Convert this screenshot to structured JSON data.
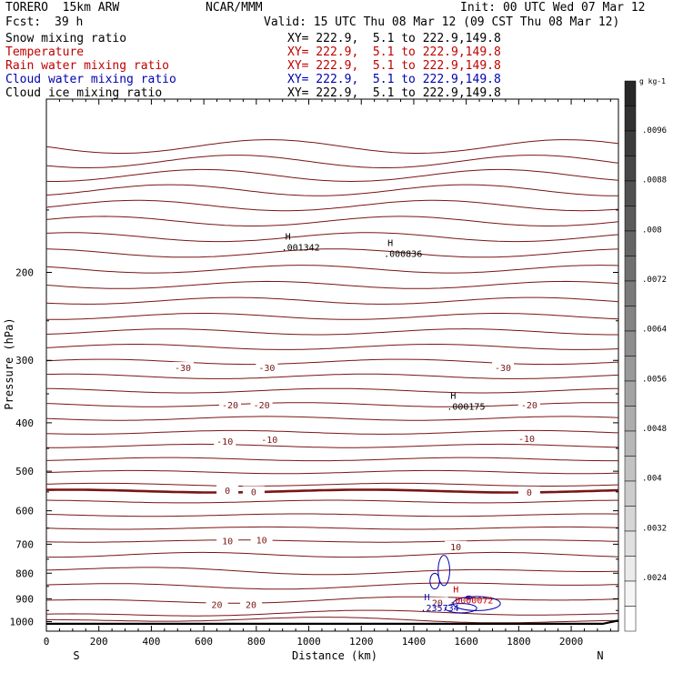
{
  "header": {
    "model": "TORERO  15km ARW",
    "org": "NCAR/MMM",
    "init": "Init: 00 UTC Wed 07 Mar 12",
    "fcst_label": "Fcst:",
    "fcst_value": "39 h",
    "valid": "Valid: 15 UTC Thu 08 Mar 12 (09 CST Thu 08 Mar 12)"
  },
  "fields": [
    {
      "name": "Snow mixing ratio",
      "xy": "XY= 222.9,  5.1 to 222.9,149.8",
      "color": "#000000"
    },
    {
      "name": "Temperature",
      "xy": "XY= 222.9,  5.1 to 222.9,149.8",
      "color": "#c00000"
    },
    {
      "name": "Rain water mixing ratio",
      "xy": "XY= 222.9,  5.1 to 222.9,149.8",
      "color": "#c00000"
    },
    {
      "name": "Cloud water mixing ratio",
      "xy": "XY= 222.9,  5.1 to 222.9,149.8",
      "color": "#0000b0"
    },
    {
      "name": "Cloud ice mixing ratio",
      "xy": "XY= 222.9,  5.1 to 222.9,149.8",
      "color": "#000000"
    }
  ],
  "chart_data": {
    "type": "contour-cross-section",
    "xlabel": "Distance (km)",
    "ylabel": "Pressure (hPa)",
    "xlim": [
      0,
      2180
    ],
    "ylim": [
      1045,
      90
    ],
    "y_scale": "log-pressure",
    "x_ticks": [
      0,
      200,
      400,
      600,
      800,
      1000,
      1200,
      1400,
      1600,
      1800,
      2000
    ],
    "y_ticks": [
      200,
      300,
      400,
      500,
      600,
      700,
      800,
      900,
      1000
    ],
    "x_end_labels": {
      "left": "S",
      "right": "N"
    },
    "temperature_contour_labels": [
      {
        "text": "-30",
        "x": 520,
        "p": 310
      },
      {
        "text": "-30",
        "x": 840,
        "p": 310
      },
      {
        "text": "-30",
        "x": 1740,
        "p": 310
      },
      {
        "text": "-20",
        "x": 700,
        "p": 368
      },
      {
        "text": "-20",
        "x": 820,
        "p": 368
      },
      {
        "text": "-20",
        "x": 1840,
        "p": 368
      },
      {
        "text": "-10",
        "x": 680,
        "p": 435
      },
      {
        "text": "-10",
        "x": 850,
        "p": 432
      },
      {
        "text": "-10",
        "x": 1830,
        "p": 430
      },
      {
        "text": "0",
        "x": 690,
        "p": 546
      },
      {
        "text": "0",
        "x": 790,
        "p": 549
      },
      {
        "text": "0",
        "x": 1840,
        "p": 550
      },
      {
        "text": "10",
        "x": 690,
        "p": 689
      },
      {
        "text": "10",
        "x": 820,
        "p": 686
      },
      {
        "text": "10",
        "x": 1560,
        "p": 707
      },
      {
        "text": "20",
        "x": 650,
        "p": 924
      },
      {
        "text": "20",
        "x": 780,
        "p": 924
      },
      {
        "text": "20",
        "x": 1490,
        "p": 916
      }
    ],
    "highs": [
      {
        "label": "H",
        "value": ".001342",
        "x": 910,
        "p": 178,
        "color": "#000000"
      },
      {
        "label": "H",
        "value": ".000836",
        "x": 1300,
        "p": 183,
        "color": "#000000"
      },
      {
        "label": "H",
        "value": ".000175",
        "x": 1540,
        "p": 370,
        "color": "#000000"
      },
      {
        "label": "H",
        "value": ".0000072",
        "x": 1550,
        "p": 905,
        "color": "#c00000"
      },
      {
        "label": "H",
        "value": ".235734",
        "x": 1440,
        "p": 938,
        "color": "#0000b0"
      }
    ],
    "colorbar": {
      "unit": "g kg-1",
      "ticks": [
        ".0096",
        ".0088",
        ".008",
        ".0072",
        ".0064",
        ".0056",
        ".0048",
        ".004",
        ".0032",
        ".0024"
      ]
    }
  }
}
